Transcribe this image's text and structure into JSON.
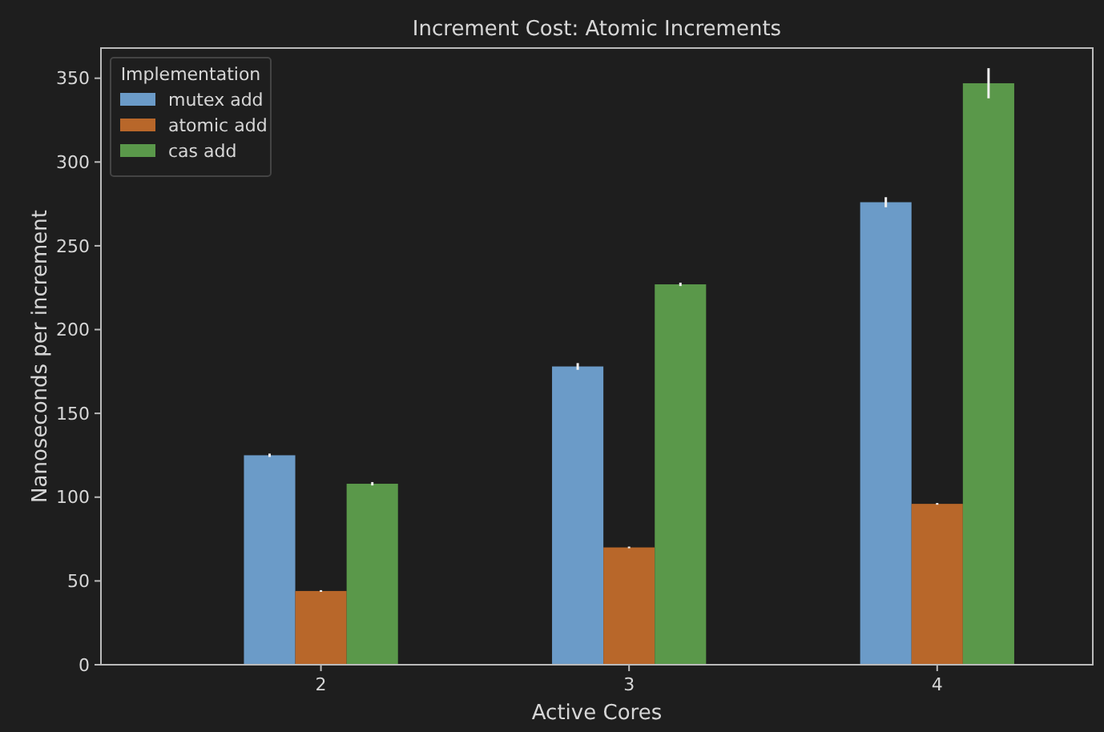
{
  "chart_data": {
    "type": "bar",
    "title": "Increment Cost: Atomic Increments",
    "xlabel": "Active Cores",
    "ylabel": "Nanoseconds per increment",
    "legend_title": "Implementation",
    "categories": [
      "2",
      "3",
      "4"
    ],
    "series": [
      {
        "name": "mutex add",
        "color": "#6b9bc8",
        "values": [
          125,
          178,
          276
        ],
        "errors": [
          1,
          2,
          3
        ]
      },
      {
        "name": "atomic add",
        "color": "#b8672a",
        "values": [
          44,
          70,
          96
        ],
        "errors": [
          0.5,
          0.5,
          0.5
        ]
      },
      {
        "name": "cas add",
        "color": "#5a984a",
        "values": [
          108,
          227,
          347
        ],
        "errors": [
          1,
          1,
          9
        ]
      }
    ],
    "ylim": [
      0,
      368
    ],
    "yticks": [
      0,
      50,
      100,
      150,
      200,
      250,
      300,
      350
    ],
    "grid": false,
    "legend": "top left"
  }
}
